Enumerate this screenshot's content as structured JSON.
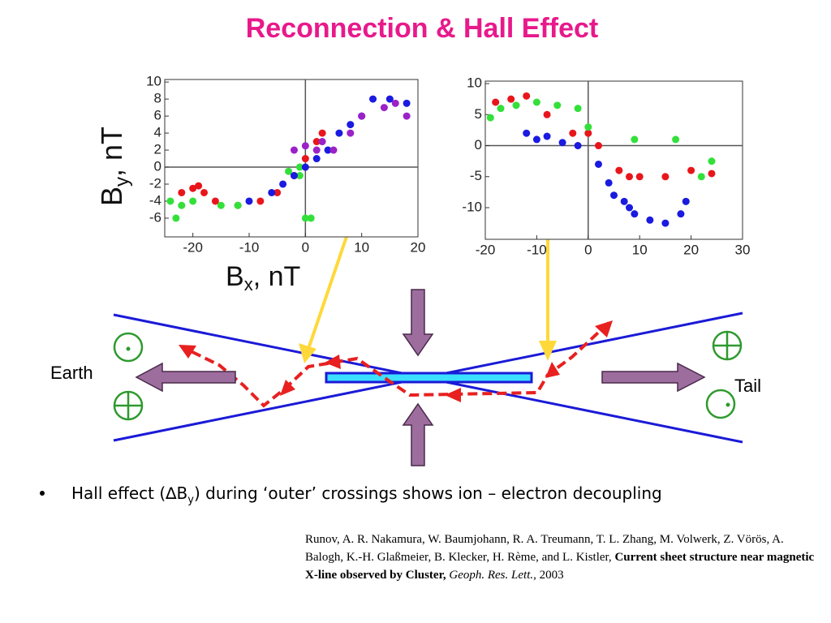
{
  "title": "Reconnection & Hall Effect",
  "chart_data": [
    {
      "type": "scatter",
      "ylabel": {
        "main": "B",
        "sub": "y",
        "rest": ", nT"
      },
      "xlabel": {
        "main": "B",
        "sub": "x",
        "rest": ", nT"
      },
      "xlim": [
        -25,
        20
      ],
      "ylim": [
        -8.2,
        10.3
      ],
      "xticks": [
        -20,
        -10,
        0,
        10,
        20
      ],
      "yticks": [
        10,
        8,
        6,
        4,
        2,
        0,
        -2,
        -4,
        -6
      ],
      "series": [
        {
          "color": "#e8161b",
          "x": [
            -22,
            -20,
            -19,
            -18,
            -16,
            -12,
            -8,
            -5,
            -2,
            0,
            2,
            3
          ],
          "values": [
            -3,
            -2.5,
            -2.2,
            -3,
            -4,
            -4.5,
            -4,
            -3,
            -1,
            1,
            3,
            4
          ]
        },
        {
          "color": "#33e03a",
          "x": [
            -24,
            -23,
            -22,
            -20,
            -15,
            -12,
            -3,
            -1,
            -1,
            0,
            1
          ],
          "values": [
            -4,
            -6,
            -4.5,
            -4,
            -4.5,
            -4.5,
            -0.5,
            0,
            -1,
            -6,
            -6
          ]
        },
        {
          "color": "#1a1ae0",
          "x": [
            -10,
            -6,
            -4,
            -2,
            0,
            2,
            4,
            6,
            8,
            10,
            12,
            15,
            18
          ],
          "values": [
            -4,
            -3,
            -2,
            -1,
            0,
            1,
            2,
            4,
            5,
            6,
            8,
            8,
            7.5
          ]
        },
        {
          "color": "#9a22c8",
          "x": [
            -2,
            0,
            2,
            3,
            5,
            8,
            10,
            14,
            16,
            18
          ],
          "values": [
            2,
            2.5,
            2,
            3,
            2,
            4,
            6,
            7,
            7.5,
            6
          ]
        }
      ]
    },
    {
      "type": "scatter",
      "xlim": [
        -20,
        30
      ],
      "ylim": [
        -15.1,
        10.4
      ],
      "xticks": [
        -20,
        -10,
        0,
        10,
        20,
        30
      ],
      "yticks": [
        10,
        5,
        0,
        -5,
        -10
      ],
      "series": [
        {
          "color": "#e8161b",
          "x": [
            -18,
            -15,
            -12,
            -8,
            -3,
            0,
            2,
            6,
            8,
            10,
            15,
            20,
            24
          ],
          "values": [
            7,
            7.5,
            8,
            5,
            2,
            2,
            0,
            -4,
            -5,
            -5,
            -5,
            -4,
            -4.5
          ]
        },
        {
          "color": "#33e03a",
          "x": [
            -19,
            -17,
            -14,
            -10,
            -6,
            -2,
            0,
            9,
            17,
            19,
            22,
            24
          ],
          "values": [
            4.5,
            6,
            6.5,
            7,
            6.5,
            6,
            3,
            1,
            1,
            -9,
            -5,
            -2.5
          ]
        },
        {
          "color": "#1a1ae0",
          "x": [
            -12,
            -10,
            -8,
            -5,
            -2,
            2,
            4,
            5,
            7,
            8,
            9,
            12,
            15,
            18,
            19
          ],
          "values": [
            2,
            1,
            1.5,
            0.5,
            0,
            -3,
            -6,
            -8,
            -9,
            -10,
            -11,
            -12,
            -12.5,
            -11,
            -9
          ]
        }
      ]
    }
  ],
  "diagram": {
    "left_label": "Earth",
    "right_label": "Tail"
  },
  "bullet": {
    "before": "Hall effect (∆B",
    "sub": "y",
    "after": ") during ‘outer’ crossings shows ion – electron decoupling"
  },
  "citation": {
    "authors": "Runov, A. R. Nakamura, W. Baumjohann, R. A. Treumann, T. L. Zhang, M. Volwerk, Z. Vörös, A. Balogh, K.-H. Glaßmeier, B. Klecker, H. Rème, and L. Kistler, ",
    "article": "Current sheet structure near magnetic X-line observed by Cluster,",
    "journal": "Geoph. Res. Lett.,",
    "year": "2003"
  }
}
